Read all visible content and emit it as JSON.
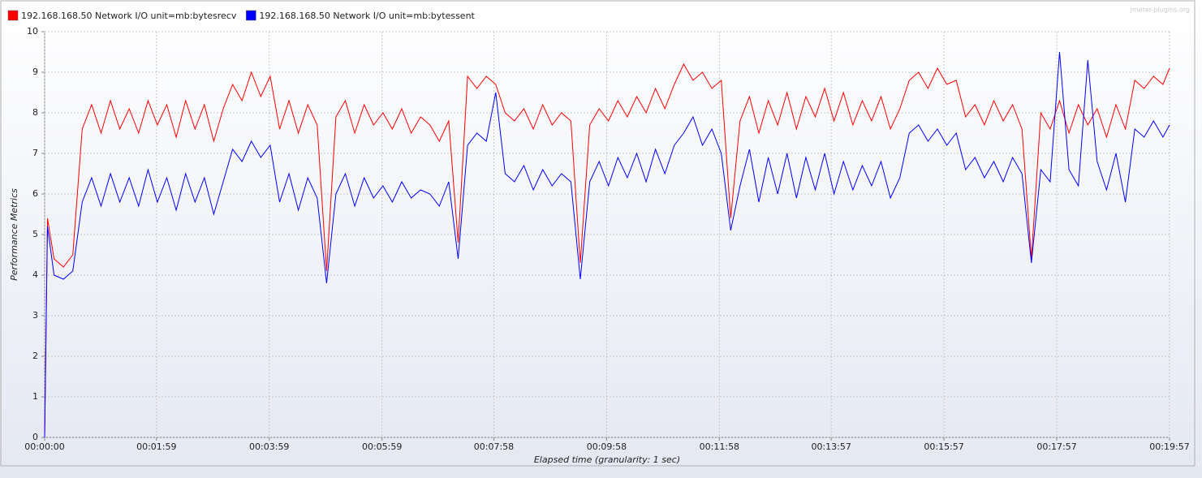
{
  "chart_data": {
    "type": "line",
    "watermark": "jmeter-plugins.org",
    "y_label": "Performance Metrics",
    "x_label": "Elapsed time (granularity: 1 sec)",
    "xlim": [
      0,
      1197
    ],
    "ylim": [
      0,
      10
    ],
    "yticks": [
      0,
      1,
      2,
      3,
      4,
      5,
      6,
      7,
      8,
      9,
      10
    ],
    "xticks": [
      {
        "value": 0,
        "label": "00:00:00"
      },
      {
        "value": 119,
        "label": "00:01:59"
      },
      {
        "value": 239,
        "label": "00:03:59"
      },
      {
        "value": 359,
        "label": "00:05:59"
      },
      {
        "value": 478,
        "label": "00:07:58"
      },
      {
        "value": 598,
        "label": "00:09:58"
      },
      {
        "value": 718,
        "label": "00:11:58"
      },
      {
        "value": 837,
        "label": "00:13:57"
      },
      {
        "value": 957,
        "label": "00:15:57"
      },
      {
        "value": 1077,
        "label": "00:17:57"
      },
      {
        "value": 1197,
        "label": "00:19:57"
      }
    ],
    "grid": true,
    "legend": "top-left",
    "x": [
      0,
      3,
      10,
      20,
      30,
      40,
      50,
      60,
      70,
      80,
      90,
      100,
      110,
      120,
      130,
      140,
      150,
      160,
      170,
      180,
      190,
      200,
      210,
      220,
      230,
      240,
      250,
      260,
      270,
      280,
      290,
      300,
      310,
      320,
      330,
      340,
      350,
      360,
      370,
      380,
      390,
      400,
      410,
      420,
      430,
      440,
      450,
      460,
      470,
      480,
      490,
      500,
      510,
      520,
      530,
      540,
      550,
      560,
      570,
      580,
      590,
      600,
      610,
      620,
      630,
      640,
      650,
      660,
      670,
      680,
      690,
      700,
      710,
      720,
      730,
      740,
      750,
      760,
      770,
      780,
      790,
      800,
      810,
      820,
      830,
      840,
      850,
      860,
      870,
      880,
      890,
      900,
      910,
      920,
      930,
      940,
      950,
      960,
      970,
      980,
      990,
      1000,
      1010,
      1020,
      1030,
      1040,
      1050,
      1060,
      1070,
      1080,
      1090,
      1100,
      1110,
      1120,
      1130,
      1140,
      1150,
      1160,
      1170,
      1180,
      1190,
      1197
    ],
    "series": [
      {
        "name": "192.168.168.50 Network I/O unit=mb:bytesrecv",
        "color": "#ff0000",
        "values": [
          0,
          5.4,
          4.4,
          4.2,
          4.5,
          7.6,
          8.2,
          7.5,
          8.3,
          7.6,
          8.1,
          7.5,
          8.3,
          7.7,
          8.2,
          7.4,
          8.3,
          7.6,
          8.2,
          7.3,
          8.1,
          8.7,
          8.3,
          9.0,
          8.4,
          8.9,
          7.6,
          8.3,
          7.5,
          8.2,
          7.7,
          4.1,
          7.9,
          8.3,
          7.5,
          8.2,
          7.7,
          8.0,
          7.6,
          8.1,
          7.5,
          7.9,
          7.7,
          7.3,
          7.8,
          4.8,
          8.9,
          8.6,
          8.9,
          8.7,
          8.0,
          7.8,
          8.1,
          7.6,
          8.2,
          7.7,
          8.0,
          7.8,
          4.3,
          7.7,
          8.1,
          7.8,
          8.3,
          7.9,
          8.4,
          8.0,
          8.6,
          8.1,
          8.7,
          9.2,
          8.8,
          9.0,
          8.6,
          8.8,
          5.4,
          7.8,
          8.4,
          7.5,
          8.3,
          7.7,
          8.5,
          7.6,
          8.4,
          7.9,
          8.6,
          7.8,
          8.5,
          7.7,
          8.3,
          7.8,
          8.4,
          7.6,
          8.1,
          8.8,
          9.0,
          8.6,
          9.1,
          8.7,
          8.8,
          7.9,
          8.2,
          7.7,
          8.3,
          7.8,
          8.2,
          7.6,
          4.4,
          8.0,
          7.6,
          8.3,
          7.5,
          8.2,
          7.7,
          8.1,
          7.4,
          8.2,
          7.6,
          8.8,
          8.6,
          8.9,
          8.7,
          9.1
        ]
      },
      {
        "name": "192.168.168.50 Network I/O unit=mb:bytessent",
        "color": "#0000ff",
        "values": [
          0,
          5.2,
          4.0,
          3.9,
          4.1,
          5.8,
          6.4,
          5.7,
          6.5,
          5.8,
          6.4,
          5.7,
          6.6,
          5.8,
          6.4,
          5.6,
          6.5,
          5.8,
          6.4,
          5.5,
          6.3,
          7.1,
          6.8,
          7.3,
          6.9,
          7.2,
          5.8,
          6.5,
          5.6,
          6.4,
          5.9,
          3.8,
          6.0,
          6.5,
          5.7,
          6.4,
          5.9,
          6.2,
          5.8,
          6.3,
          5.9,
          6.1,
          6.0,
          5.7,
          6.3,
          4.4,
          7.2,
          7.5,
          7.3,
          8.5,
          6.5,
          6.3,
          6.7,
          6.1,
          6.6,
          6.2,
          6.5,
          6.3,
          3.9,
          6.3,
          6.8,
          6.2,
          6.9,
          6.4,
          7.0,
          6.3,
          7.1,
          6.5,
          7.2,
          7.5,
          7.9,
          7.2,
          7.6,
          7.0,
          5.1,
          6.2,
          7.1,
          5.8,
          6.9,
          6.0,
          7.0,
          5.9,
          6.9,
          6.1,
          7.0,
          6.0,
          6.8,
          6.1,
          6.7,
          6.2,
          6.8,
          5.9,
          6.4,
          7.5,
          7.7,
          7.3,
          7.6,
          7.2,
          7.5,
          6.6,
          6.9,
          6.4,
          6.8,
          6.3,
          6.9,
          6.5,
          4.3,
          6.6,
          6.3,
          9.5,
          6.6,
          6.2,
          9.3,
          6.8,
          6.1,
          7.0,
          5.8,
          7.6,
          7.4,
          7.8,
          7.4,
          7.7
        ]
      }
    ]
  }
}
